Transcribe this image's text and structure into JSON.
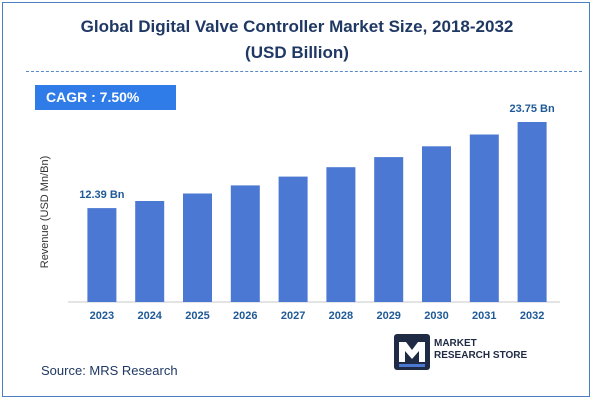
{
  "title_line1": "Global Digital Valve Controller Market Size, 2018-2032",
  "title_line2": "(USD Billion)",
  "cagr_label": "CAGR :  7.50%",
  "source": "Source: MRS Research",
  "logo": {
    "line1": "MARKET",
    "line2": "RESEARCH STORE",
    "icon": "mrs-logo-icon"
  },
  "colors": {
    "bar": "#4a78d2",
    "title": "#1f3864",
    "label": "#1f5a96",
    "cagr_bg": "#2f7ce8"
  },
  "chart_data": {
    "type": "bar",
    "categories": [
      "2023",
      "2024",
      "2025",
      "2026",
      "2027",
      "2028",
      "2029",
      "2030",
      "2031",
      "2032"
    ],
    "values": [
      12.39,
      13.32,
      14.32,
      15.39,
      16.55,
      17.79,
      19.12,
      20.55,
      22.1,
      23.75
    ],
    "data_labels": [
      {
        "index": 0,
        "text": "12.39 Bn"
      },
      {
        "index": 9,
        "text": "23.75 Bn"
      }
    ],
    "ylabel": "Revenue (USD Mn/Bn)",
    "xlabel": "",
    "ylim": [
      0,
      23.75
    ],
    "grid": false,
    "legend": "none"
  }
}
